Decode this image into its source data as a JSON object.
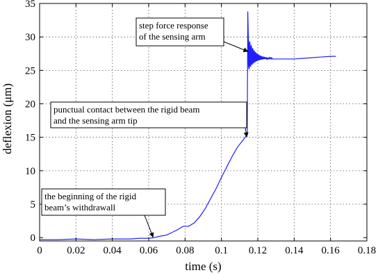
{
  "chart_data": {
    "type": "line",
    "xlabel": "time (s)",
    "ylabel": "deflexion (μm)",
    "xlim": [
      0,
      0.18
    ],
    "ylim": [
      -0.5,
      35
    ],
    "xticks": [
      0,
      0.02,
      0.04,
      0.06,
      0.08,
      0.1,
      0.12,
      0.14,
      0.16,
      0.18
    ],
    "xtick_labels": [
      "0",
      "0.02",
      "0.04",
      "0.06",
      "0.08",
      "0.1",
      "0.12",
      "0.14",
      "0.16",
      "0.18"
    ],
    "yticks": [
      0,
      5,
      10,
      15,
      20,
      25,
      30,
      35
    ],
    "ytick_labels": [
      "0",
      "5",
      "10",
      "15",
      "20",
      "25",
      "30",
      "35"
    ],
    "grid": true,
    "line_color": "#1f1fff",
    "series": [
      {
        "x": [
          0,
          0.01,
          0.02,
          0.03,
          0.04,
          0.05,
          0.055,
          0.06,
          0.063,
          0.066,
          0.07,
          0.073,
          0.076,
          0.079,
          0.082,
          0.085,
          0.088,
          0.091,
          0.094,
          0.097,
          0.1,
          0.103,
          0.106,
          0.109,
          0.112,
          0.1135,
          0.1142
        ],
        "y": [
          -0.3,
          -0.3,
          -0.2,
          -0.3,
          -0.2,
          -0.2,
          -0.1,
          -0.1,
          0,
          0.2,
          0.4,
          0.8,
          1.2,
          1.7,
          1.7,
          2.2,
          3.1,
          4.3,
          5.8,
          7.3,
          9.0,
          10.6,
          12.2,
          13.6,
          14.6,
          15.2,
          15.4
        ]
      }
    ],
    "step_response": {
      "t_start": 0.1142,
      "start": 15.4,
      "overshoot_peak": 33.8,
      "min_after": 24.6,
      "settle_value": 26.8,
      "decay_end": 0.128
    },
    "tail": {
      "x": [
        0.128,
        0.135,
        0.14,
        0.145,
        0.15,
        0.155,
        0.16,
        0.163
      ],
      "y": [
        26.7,
        26.7,
        26.7,
        26.8,
        26.9,
        27.0,
        27.1,
        27.1
      ]
    },
    "annotations": [
      {
        "lines": [
          "step force response",
          "of the sensing arm"
        ],
        "target": [
          0.1148,
          27.8
        ]
      },
      {
        "lines": [
          "punctual contact between the rigid beam",
          "and the sensing arm tip"
        ],
        "target": [
          0.114,
          15.0
        ]
      },
      {
        "lines": [
          "the beginning of the rigid",
          "beam’s withdrawall"
        ],
        "target": [
          0.0625,
          0.0
        ]
      }
    ]
  }
}
